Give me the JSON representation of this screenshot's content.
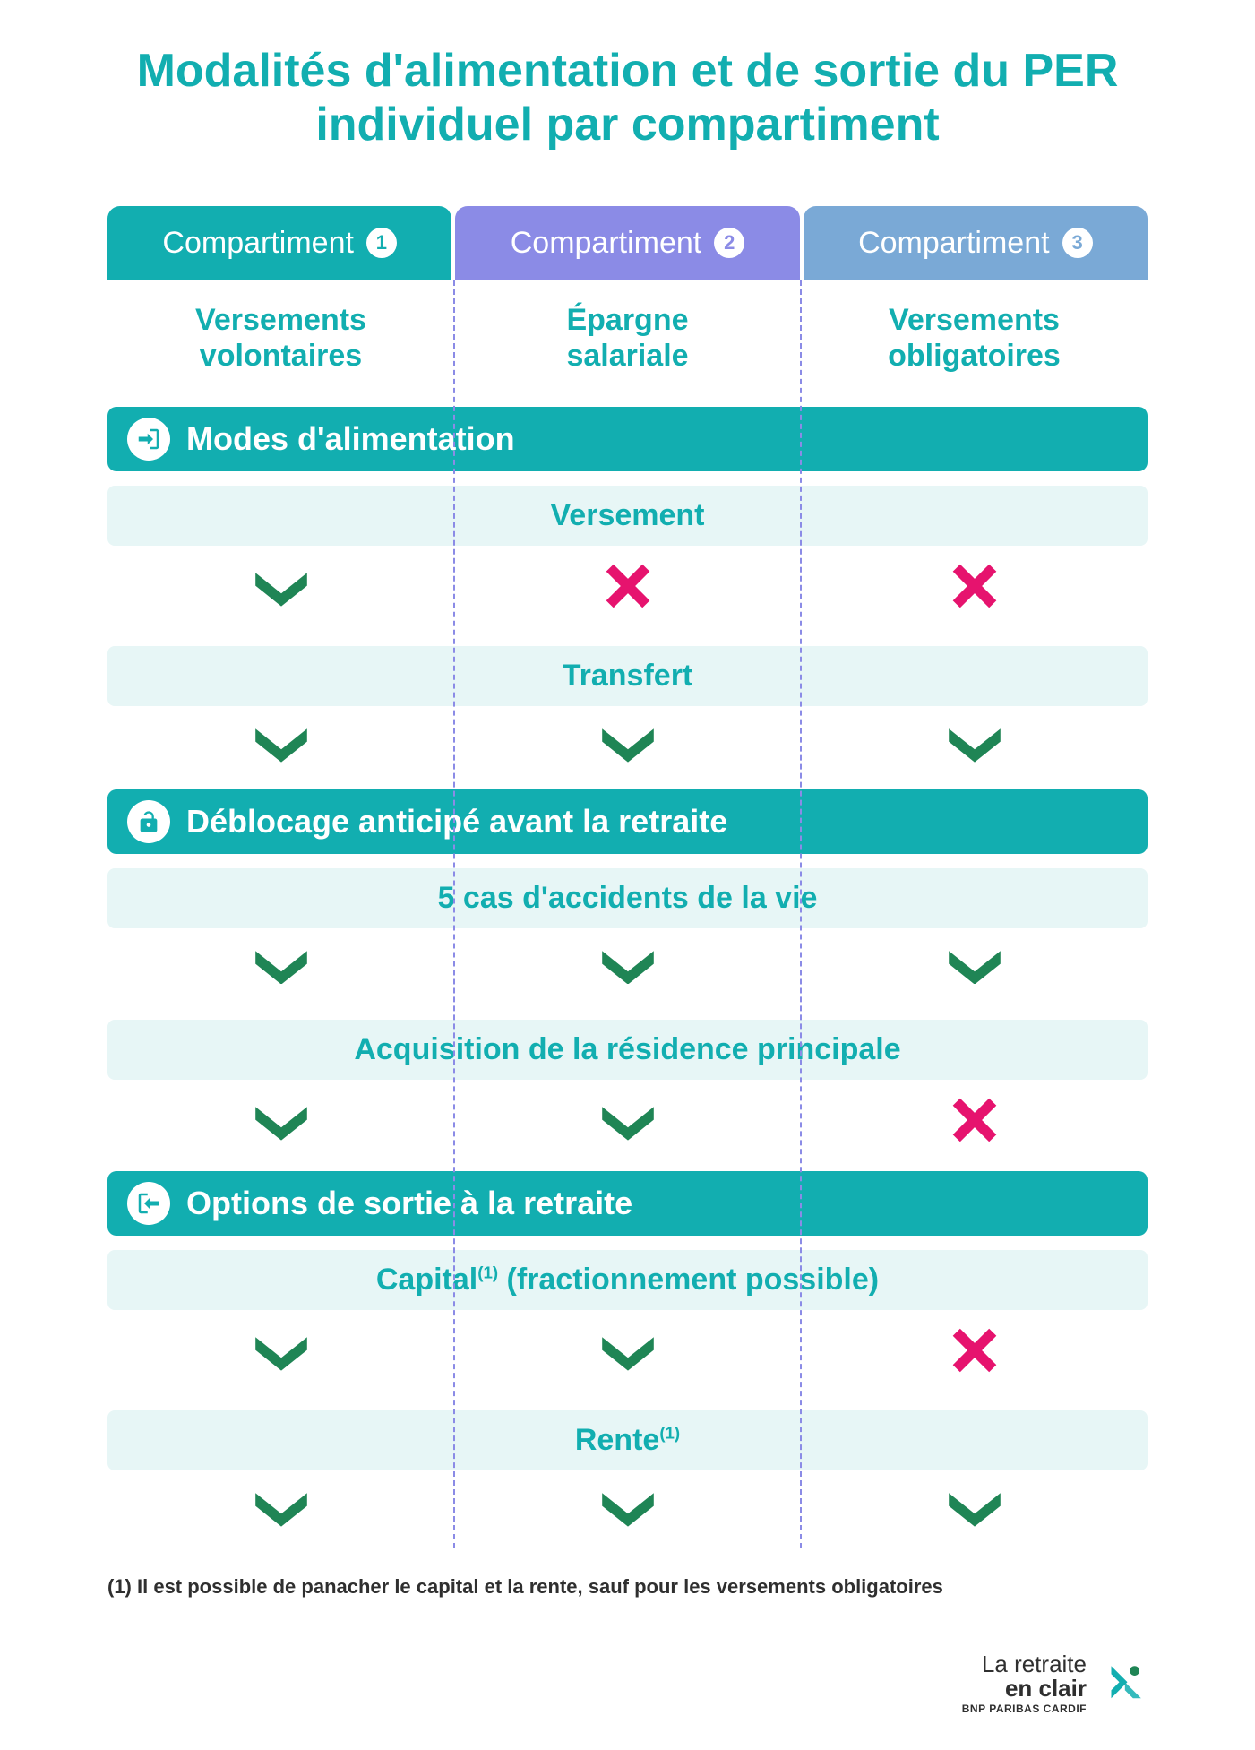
{
  "colors": {
    "teal": "#12aeb0",
    "teal_dark": "#128f8f",
    "purple": "#8b8be6",
    "blue": "#7aa9d6",
    "light_teal": "#e7f6f6",
    "check": "#1f8555",
    "cross": "#e6136e",
    "divider": "#8b8be6",
    "text_dark": "#2f2f2f"
  },
  "title": "Modalités d'alimentation et de sortie du PER individuel par compartiment",
  "title_fontsize": 52,
  "compartments": [
    {
      "label": "Compartiment",
      "num": "1",
      "bg": "#12aeb0",
      "badge_color": "#12aeb0",
      "sub": "Versements volontaires"
    },
    {
      "label": "Compartiment",
      "num": "2",
      "bg": "#8b8be6",
      "badge_color": "#8b8be6",
      "sub": "Épargne salariale"
    },
    {
      "label": "Compartiment",
      "num": "3",
      "bg": "#7aa9d6",
      "badge_color": "#7aa9d6",
      "sub": "Versements obligatoires"
    }
  ],
  "sections": [
    {
      "icon": "login",
      "title": "Modes d'alimentation",
      "criteria": [
        {
          "label": "Versement",
          "sup": "",
          "marks": [
            "check",
            "cross",
            "cross"
          ]
        },
        {
          "label": "Transfert",
          "sup": "",
          "marks": [
            "check",
            "check",
            "check"
          ]
        }
      ]
    },
    {
      "icon": "unlock",
      "title": "Déblocage anticipé avant la retraite",
      "criteria": [
        {
          "label": "5 cas d'accidents de la vie",
          "sup": "",
          "marks": [
            "check",
            "check",
            "check"
          ]
        },
        {
          "label": "Acquisition de la résidence principale",
          "sup": "",
          "marks": [
            "check",
            "check",
            "cross"
          ]
        }
      ]
    },
    {
      "icon": "logout",
      "title": "Options de sortie à la retraite",
      "criteria": [
        {
          "label": "Capital",
          "sup": "(1)",
          "label2": " (fractionnement possible)",
          "marks": [
            "check",
            "check",
            "cross"
          ]
        },
        {
          "label": "Rente",
          "sup": "(1)",
          "label2": "",
          "marks": [
            "check",
            "check",
            "check"
          ]
        }
      ]
    }
  ],
  "footnote": "(1) Il est possible de panacher le capital et la rente, sauf pour les versements obligatoires",
  "footer": {
    "line1": "La retraite",
    "line2": "en clair",
    "line3": "BNP PARIBAS CARDIF"
  },
  "mark_size": 72
}
